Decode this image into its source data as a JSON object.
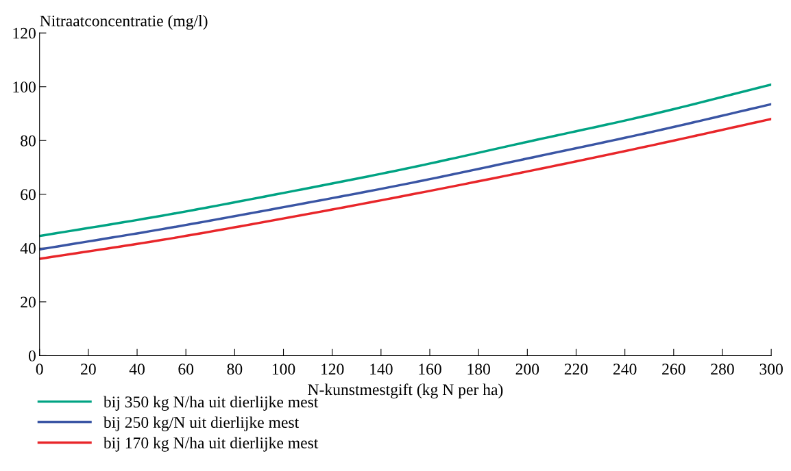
{
  "chart_data": {
    "type": "line",
    "ylabel": "Nitraatconcentratie (mg/l)",
    "xlabel": "N-kunstmestgift (kg N per ha)",
    "x": [
      0,
      50,
      100,
      150,
      200,
      250,
      300
    ],
    "series": [
      {
        "name": "bij 350 kg N/ha uit dierlijke mest",
        "color": "#00a383",
        "values": [
          44.5,
          52,
          60.5,
          69.5,
          79.5,
          89.5,
          100.8
        ]
      },
      {
        "name": "bij 250 kg/N uit dierlijke mest",
        "color": "#3a55a4",
        "values": [
          39.5,
          47,
          55.2,
          63.8,
          73.3,
          83,
          93.5
        ]
      },
      {
        "name": "bij 170 kg N/ha uit dierlijke mest",
        "color": "#e8262a",
        "values": [
          36,
          43,
          51,
          59.5,
          68.5,
          78,
          88
        ]
      }
    ],
    "xlim": [
      0,
      300
    ],
    "xticks": [
      0,
      20,
      40,
      60,
      80,
      100,
      120,
      140,
      160,
      180,
      200,
      220,
      240,
      260,
      280,
      300
    ],
    "ylim": [
      0,
      120
    ],
    "yticks": [
      0,
      20,
      40,
      60,
      80,
      100,
      120
    ],
    "grid": false,
    "legend": "bottom left",
    "marker": "none",
    "line_style": "solid"
  }
}
